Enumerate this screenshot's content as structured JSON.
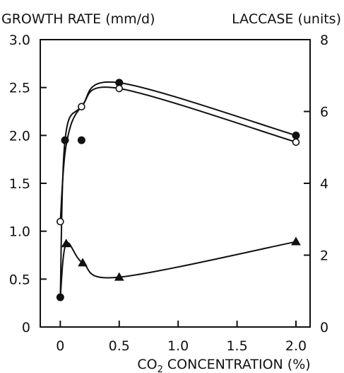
{
  "chart_data": {
    "type": "scatter",
    "title": "",
    "left_axis_label": "GROWTH RATE (mm/d)",
    "right_axis_label": "LACCASE (units)",
    "x_label_prefix": "CO",
    "x_label_sub": "2",
    "x_label_suffix": " CONCENTRATION (%)",
    "xlim": [
      -0.17,
      2.12
    ],
    "ylim_left": [
      0,
      3.0
    ],
    "ylim_right": [
      0,
      8
    ],
    "x_ticks": [
      {
        "v": 0,
        "label": "0"
      },
      {
        "v": 0.5,
        "label": "0.5"
      },
      {
        "v": 1.0,
        "label": "1.0"
      },
      {
        "v": 1.5,
        "label": "1.5"
      },
      {
        "v": 2.0,
        "label": "2.0"
      }
    ],
    "left_ticks": [
      {
        "v": 0,
        "label": "0"
      },
      {
        "v": 0.5,
        "label": "0.5"
      },
      {
        "v": 1.0,
        "label": "1.0"
      },
      {
        "v": 1.5,
        "label": "1.5"
      },
      {
        "v": 2.0,
        "label": "2.0"
      },
      {
        "v": 2.5,
        "label": "2.5"
      },
      {
        "v": 3.0,
        "label": "3.0"
      }
    ],
    "right_ticks": [
      {
        "v": 0,
        "label": "0"
      },
      {
        "v": 2,
        "label": "2"
      },
      {
        "v": 4,
        "label": "4"
      },
      {
        "v": 6,
        "label": "6"
      },
      {
        "v": 8,
        "label": "8"
      }
    ],
    "grid": false,
    "legend": "none",
    "series": [
      {
        "marker": "filled-circle",
        "axis": "left",
        "points": [
          [
            0,
            0.31
          ],
          [
            0.04,
            1.95
          ],
          [
            0.18,
            1.95
          ],
          [
            0.5,
            2.55
          ],
          [
            2.0,
            2.0
          ]
        ],
        "curve": [
          [
            0,
            0.31
          ],
          [
            0.04,
            1.95
          ],
          [
            0.18,
            2.3
          ],
          [
            0.5,
            2.55
          ],
          [
            2.0,
            2.0
          ]
        ]
      },
      {
        "marker": "open-circle",
        "axis": "left",
        "points": [
          [
            0,
            1.1
          ],
          [
            0.18,
            2.3
          ],
          [
            0.5,
            2.49
          ],
          [
            2.0,
            1.93
          ]
        ],
        "curve": [
          [
            0,
            1.1
          ],
          [
            0.05,
            1.9
          ],
          [
            0.18,
            2.3
          ],
          [
            0.5,
            2.49
          ],
          [
            2.0,
            1.93
          ]
        ]
      },
      {
        "marker": "filled-triangle",
        "axis": "left",
        "points": [
          [
            0.05,
            0.87
          ],
          [
            0.19,
            0.67
          ],
          [
            0.5,
            0.52
          ],
          [
            2.0,
            0.89
          ]
        ],
        "curve": [
          [
            0,
            0.31
          ],
          [
            0.05,
            0.87
          ],
          [
            0.19,
            0.67
          ],
          [
            0.5,
            0.52
          ],
          [
            2.0,
            0.89
          ]
        ]
      }
    ]
  }
}
